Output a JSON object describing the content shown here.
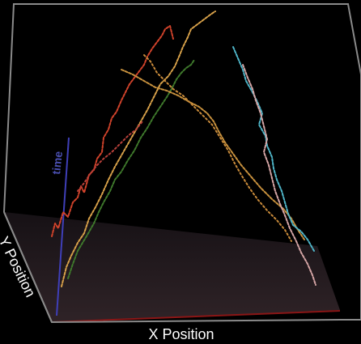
{
  "labels": {
    "x_axis": "X Position",
    "y_axis": "Y Position",
    "time_axis": "time"
  },
  "colors": {
    "background": "#000000",
    "frame": "#8a8a8a",
    "floor_top": "#1a1418",
    "floor_bottom": "#2e2226",
    "time_axis": "#3f3fb8",
    "floor_edge": "#a01818"
  },
  "tracks": [
    {
      "name": "red-track",
      "color": "#d2432b"
    },
    {
      "name": "orange-track",
      "color": "#d9a24a"
    },
    {
      "name": "green-track",
      "color": "#3f7a2c"
    },
    {
      "name": "cyan-track",
      "color": "#4fb6c9"
    },
    {
      "name": "pink-track",
      "color": "#d6a6a6"
    }
  ]
}
